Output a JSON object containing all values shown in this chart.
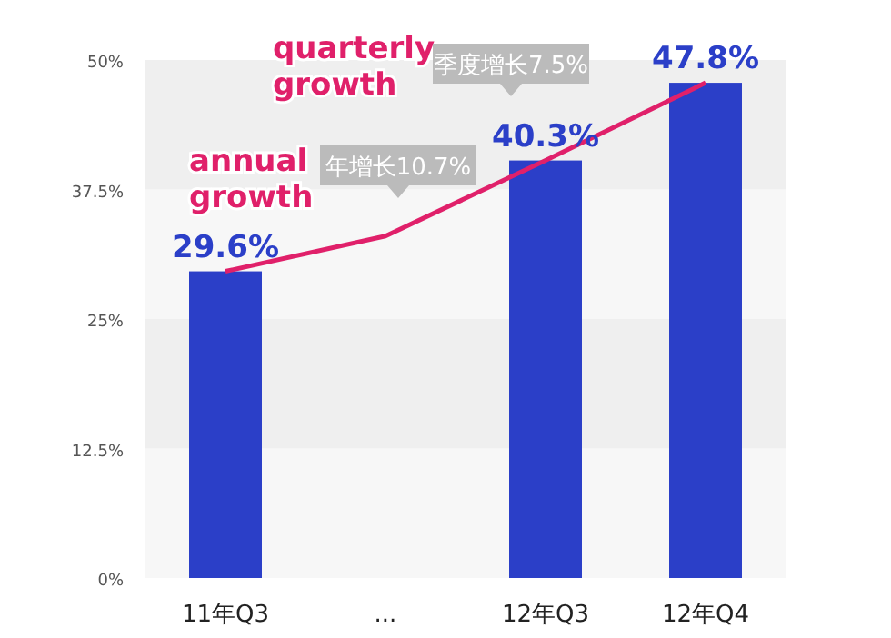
{
  "chart_data": {
    "type": "bar",
    "categories": [
      "11年Q3",
      "...",
      "12年Q3",
      "12年Q4"
    ],
    "series": [
      {
        "color": "#2b3fc8",
        "values": [
          29.6,
          null,
          40.3,
          47.8
        ],
        "value_labels": [
          "29.6%",
          null,
          "40.3%",
          "47.8%"
        ]
      },
      {
        "type": "line",
        "color": "#e0206a",
        "values": [
          29.6,
          33,
          40.3,
          47.8
        ]
      }
    ],
    "ylim": [
      0,
      50
    ],
    "yticks": [
      {
        "value": 0,
        "label": "0%"
      },
      {
        "value": 12.5,
        "label": "12.5%"
      },
      {
        "value": 25,
        "label": "25%"
      },
      {
        "value": 37.5,
        "label": "37.5%"
      },
      {
        "value": 50,
        "label": "50%"
      }
    ],
    "annotations": [
      "annual growth",
      "年增长10.7%",
      "quarterly growth",
      "季度增长7.5%"
    ]
  }
}
